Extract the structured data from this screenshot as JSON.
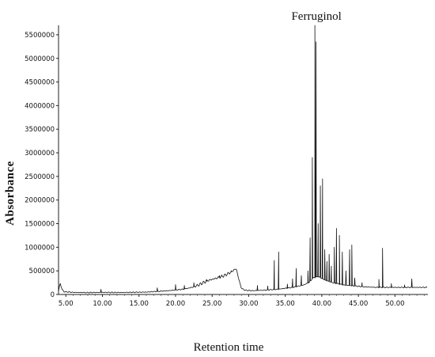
{
  "chart_data": {
    "type": "line",
    "title": "",
    "xlabel": "Retention time",
    "ylabel": "Absorbance",
    "xlim": [
      4.0,
      54.5
    ],
    "ylim": [
      0,
      5700000
    ],
    "grid": false,
    "legend": "none",
    "x_ticks": [
      5,
      10,
      15,
      20,
      25,
      30,
      35,
      40,
      45,
      50
    ],
    "x_tick_labels": [
      "5.00",
      "10.00",
      "15.00",
      "20.00",
      "25.00",
      "30.00",
      "35.00",
      "40.00",
      "45.00",
      "50.00"
    ],
    "y_ticks": [
      0,
      500000,
      1000000,
      1500000,
      2000000,
      2500000,
      3000000,
      3500000,
      4000000,
      4500000,
      5000000,
      5500000
    ],
    "y_tick_labels": [
      "0",
      "500000",
      "1000000",
      "1500000",
      "2000000",
      "2500000",
      "3000000",
      "3500000",
      "4000000",
      "4500000",
      "5000000",
      "5500000"
    ],
    "annotations": [
      {
        "text": "Ferruginol",
        "x": 39.05,
        "y": 5700000
      }
    ],
    "baseline": [
      [
        4.0,
        60000
      ],
      [
        4.2,
        250000
      ],
      [
        4.45,
        120000
      ],
      [
        4.7,
        60000
      ],
      [
        6,
        45000
      ],
      [
        8,
        40000
      ],
      [
        10,
        45000
      ],
      [
        12,
        42000
      ],
      [
        14,
        45000
      ],
      [
        16,
        50000
      ],
      [
        17,
        60000
      ],
      [
        18,
        70000
      ],
      [
        19,
        80000
      ],
      [
        20,
        95000
      ],
      [
        21,
        110000
      ],
      [
        22,
        140000
      ],
      [
        23,
        190000
      ],
      [
        23.8,
        250000
      ],
      [
        24.5,
        300000
      ],
      [
        25.5,
        340000
      ],
      [
        26.5,
        390000
      ],
      [
        27.2,
        440000
      ],
      [
        27.8,
        500000
      ],
      [
        28.3,
        550000
      ],
      [
        28.6,
        350000
      ],
      [
        29.0,
        130000
      ],
      [
        29.5,
        90000
      ],
      [
        30.5,
        80000
      ],
      [
        32,
        90000
      ],
      [
        34,
        110000
      ],
      [
        36,
        150000
      ],
      [
        37.5,
        200000
      ],
      [
        38.3,
        260000
      ],
      [
        38.8,
        350000
      ],
      [
        39.5,
        380000
      ],
      [
        40.5,
        300000
      ],
      [
        41.5,
        250000
      ],
      [
        43,
        200000
      ],
      [
        44.5,
        180000
      ],
      [
        46,
        160000
      ],
      [
        47.5,
        150000
      ],
      [
        49,
        150000
      ],
      [
        51,
        150000
      ],
      [
        53,
        150000
      ],
      [
        54.5,
        150000
      ]
    ],
    "peaks": [
      {
        "x": 9.8,
        "y": 110000
      },
      {
        "x": 17.5,
        "y": 140000
      },
      {
        "x": 20.0,
        "y": 210000
      },
      {
        "x": 21.2,
        "y": 190000
      },
      {
        "x": 22.5,
        "y": 250000
      },
      {
        "x": 24.2,
        "y": 310000
      },
      {
        "x": 26.0,
        "y": 400000
      },
      {
        "x": 27.6,
        "y": 480000
      },
      {
        "x": 31.2,
        "y": 190000
      },
      {
        "x": 32.6,
        "y": 180000
      },
      {
        "x": 33.5,
        "y": 720000
      },
      {
        "x": 34.1,
        "y": 900000
      },
      {
        "x": 35.3,
        "y": 220000
      },
      {
        "x": 36.0,
        "y": 330000
      },
      {
        "x": 36.5,
        "y": 550000
      },
      {
        "x": 37.2,
        "y": 400000
      },
      {
        "x": 38.1,
        "y": 500000
      },
      {
        "x": 38.4,
        "y": 1200000
      },
      {
        "x": 38.7,
        "y": 2900000
      },
      {
        "x": 39.05,
        "y": 5700000
      },
      {
        "x": 39.2,
        "y": 5350000
      },
      {
        "x": 39.5,
        "y": 1500000
      },
      {
        "x": 39.8,
        "y": 2300000
      },
      {
        "x": 40.1,
        "y": 2450000
      },
      {
        "x": 40.4,
        "y": 950000
      },
      {
        "x": 40.7,
        "y": 700000
      },
      {
        "x": 41.0,
        "y": 850000
      },
      {
        "x": 41.3,
        "y": 600000
      },
      {
        "x": 41.7,
        "y": 1000000
      },
      {
        "x": 42.0,
        "y": 1400000
      },
      {
        "x": 42.4,
        "y": 1250000
      },
      {
        "x": 42.8,
        "y": 900000
      },
      {
        "x": 43.3,
        "y": 500000
      },
      {
        "x": 43.8,
        "y": 950000
      },
      {
        "x": 44.1,
        "y": 1050000
      },
      {
        "x": 44.5,
        "y": 350000
      },
      {
        "x": 45.5,
        "y": 250000
      },
      {
        "x": 47.8,
        "y": 320000
      },
      {
        "x": 48.3,
        "y": 980000
      },
      {
        "x": 49.5,
        "y": 230000
      },
      {
        "x": 51.3,
        "y": 200000
      },
      {
        "x": 52.3,
        "y": 330000
      }
    ]
  }
}
